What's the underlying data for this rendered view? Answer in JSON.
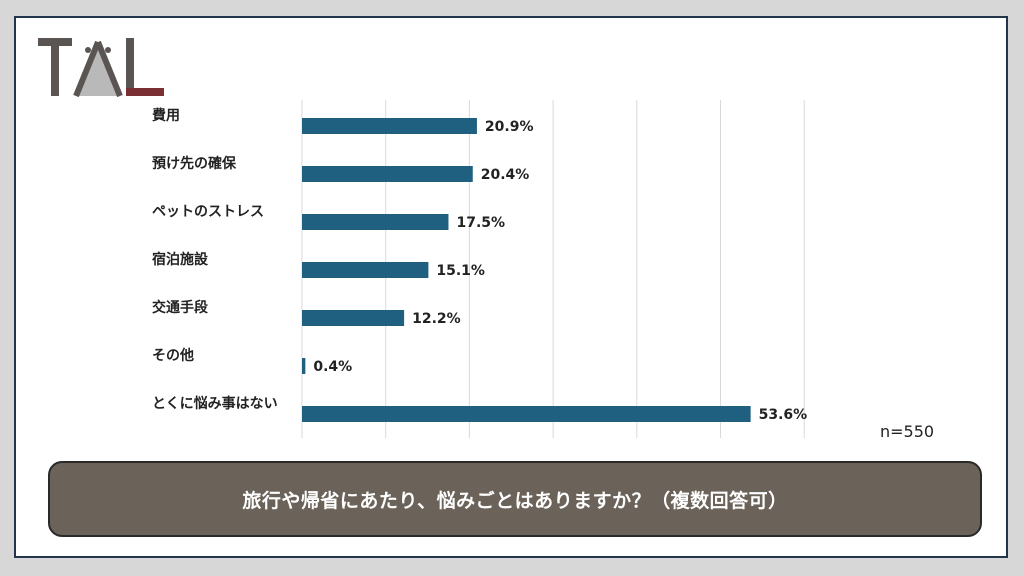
{
  "logo": {
    "text": "TAL"
  },
  "colors": {
    "bar": "#1f5f80",
    "grid": "#d9d9d9",
    "caption_bg": "#6b6259",
    "logo_dark": "#5a5552",
    "logo_red": "#7a2f33",
    "logo_gray": "#b9b9b9"
  },
  "chart_data": {
    "type": "bar",
    "orientation": "horizontal",
    "categories": [
      "費用",
      "預け先の確保",
      "ペットのストレス",
      "宿泊施設",
      "交通手段",
      "その他",
      "とくに悩み事はない"
    ],
    "values": [
      20.9,
      20.4,
      17.5,
      15.1,
      12.2,
      0.4,
      53.6
    ],
    "value_labels": [
      "20.9%",
      "20.4%",
      "17.5%",
      "15.1%",
      "12.2%",
      "0.4%",
      "53.6%"
    ],
    "xlim": [
      0,
      60
    ],
    "grid": true,
    "legend": "none"
  },
  "sample_size": "n=550",
  "caption": "旅行や帰省にあたり、悩みごとはありますか？（複数回答可）"
}
